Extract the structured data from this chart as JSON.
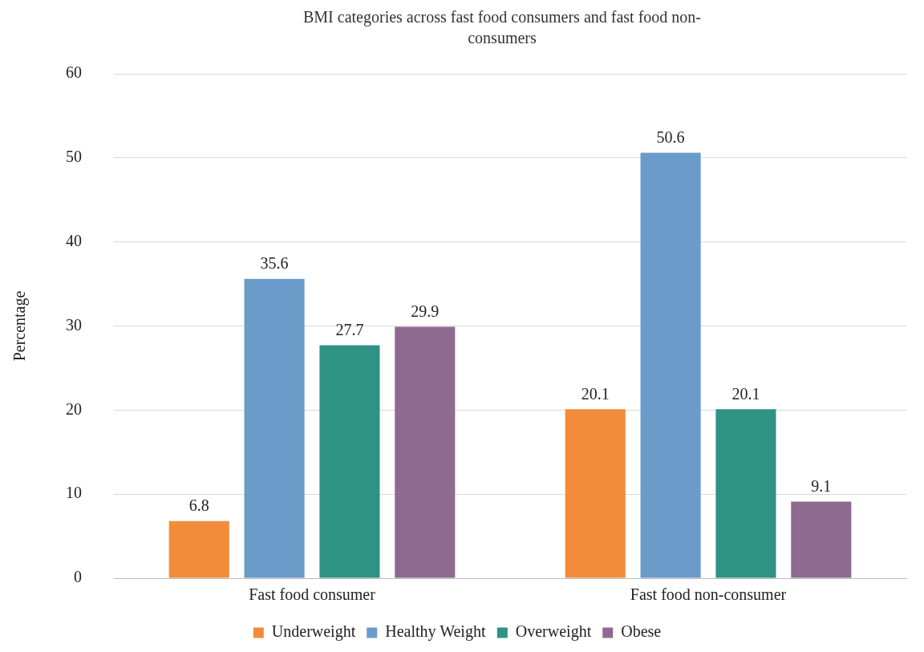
{
  "chart_data": {
    "type": "bar",
    "title": "BMI categories across fast food consumers and fast food non-consumers",
    "ylabel": "Percentage",
    "categories": [
      "Fast food consumer",
      "Fast food non-consumer"
    ],
    "series": [
      {
        "name": "Underweight",
        "color": "#f28c3a",
        "values": [
          6.8,
          20.1
        ]
      },
      {
        "name": "Healthy Weight",
        "color": "#6a9bc9",
        "values": [
          35.6,
          50.6
        ]
      },
      {
        "name": "Overweight",
        "color": "#2e9384",
        "values": [
          27.7,
          20.1
        ]
      },
      {
        "name": "Obese",
        "color": "#8e6a90",
        "values": [
          29.9,
          9.1
        ]
      }
    ],
    "ylim": [
      0,
      60
    ],
    "yticks": [
      0,
      10,
      20,
      30,
      40,
      50,
      60
    ],
    "grid": "y",
    "legend": "bottom",
    "data_labels": true
  }
}
